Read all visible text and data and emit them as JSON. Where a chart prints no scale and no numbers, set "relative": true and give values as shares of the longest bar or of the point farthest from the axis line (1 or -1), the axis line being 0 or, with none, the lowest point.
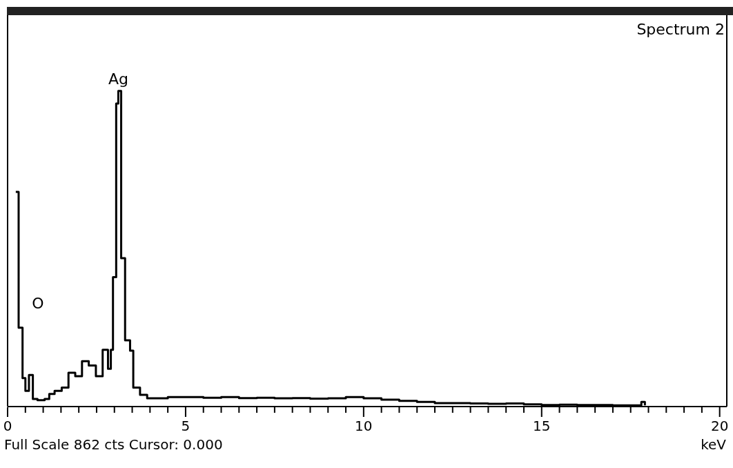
{
  "chart_data": {
    "type": "step",
    "title": "Spectrum 2",
    "xlabel": "keV",
    "relative": true,
    "tick_labels": "x",
    "marker": "none",
    "line_style": "solid",
    "annotations": [
      {
        "text": "Ag",
        "x": 3.11,
        "y": 1.0
      },
      {
        "text": "O",
        "x": 0.5,
        "y": 0.25
      },
      "Full Scale 862 cts Cursor: 0.000"
    ],
    "xlim": [
      0,
      20.2
    ],
    "xticks": [
      0,
      {
        "value": 0.5,
        "label": null
      },
      {
        "value": 1,
        "label": null
      },
      {
        "value": 1.5,
        "label": null
      },
      {
        "value": 2,
        "label": null
      },
      {
        "value": 2.5,
        "label": null
      },
      {
        "value": 3,
        "label": null
      },
      {
        "value": 3.5,
        "label": null
      },
      {
        "value": 4,
        "label": null
      },
      {
        "value": 4.5,
        "label": null
      },
      5,
      {
        "value": 5.5,
        "label": null
      },
      {
        "value": 6,
        "label": null
      },
      {
        "value": 6.5,
        "label": null
      },
      {
        "value": 7,
        "label": null
      },
      {
        "value": 7.5,
        "label": null
      },
      {
        "value": 8,
        "label": null
      },
      {
        "value": 8.5,
        "label": null
      },
      {
        "value": 9,
        "label": null
      },
      {
        "value": 9.5,
        "label": null
      },
      10,
      {
        "value": 10.5,
        "label": null
      },
      {
        "value": 11,
        "label": null
      },
      {
        "value": 11.5,
        "label": null
      },
      {
        "value": 12,
        "label": null
      },
      {
        "value": 12.5,
        "label": null
      },
      {
        "value": 13,
        "label": null
      },
      {
        "value": 13.5,
        "label": null
      },
      {
        "value": 14,
        "label": null
      },
      {
        "value": 14.5,
        "label": null
      },
      15,
      {
        "value": 15.5,
        "label": null
      },
      {
        "value": 16,
        "label": null
      },
      {
        "value": 16.5,
        "label": null
      },
      {
        "value": 17,
        "label": null
      },
      {
        "value": 17.5,
        "label": null
      },
      {
        "value": 18,
        "label": null
      },
      {
        "value": 18.5,
        "label": null
      },
      {
        "value": 19,
        "label": null
      },
      {
        "value": 19.5,
        "label": null
      },
      20
    ],
    "series": [
      {
        "color": "#000000",
        "x": [
          0.23,
          0.31,
          0.42,
          0.5,
          0.6,
          0.71,
          0.84,
          1.04,
          1.17,
          1.32,
          1.52,
          1.71,
          1.9,
          2.09,
          2.28,
          2.48,
          2.67,
          2.82,
          2.9,
          2.96,
          3.05,
          3.11,
          3.19,
          3.3,
          3.44,
          3.53,
          3.72,
          3.92,
          4.5,
          5,
          5.5,
          6,
          6.5,
          7,
          7.5,
          8,
          8.5,
          9,
          9.5,
          10,
          10.5,
          11,
          11.5,
          12,
          12.5,
          13,
          13.5,
          14,
          14.5,
          15,
          15.5,
          16,
          16.5,
          17,
          17.5,
          17.8,
          17.9
        ],
        "values": [
          0.68,
          0.25,
          0.09,
          0.05,
          0.1,
          0.024,
          0.02,
          0.024,
          0.04,
          0.05,
          0.06,
          0.107,
          0.096,
          0.144,
          0.13,
          0.096,
          0.18,
          0.12,
          0.18,
          0.41,
          0.96,
          1.0,
          0.47,
          0.21,
          0.177,
          0.06,
          0.037,
          0.026,
          0.03,
          0.03,
          0.028,
          0.03,
          0.027,
          0.028,
          0.026,
          0.027,
          0.025,
          0.026,
          0.03,
          0.026,
          0.022,
          0.018,
          0.015,
          0.011,
          0.011,
          0.01,
          0.009,
          0.01,
          0.007,
          0.005,
          0.006,
          0.005,
          0.005,
          0.004,
          0.004,
          0.015,
          0.004
        ]
      }
    ]
  }
}
